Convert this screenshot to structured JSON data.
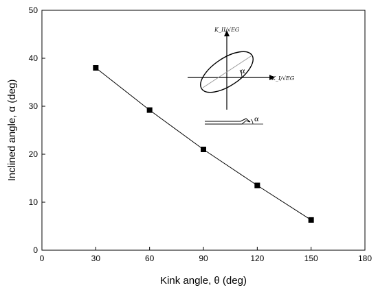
{
  "chart_data": {
    "type": "line",
    "x": [
      30,
      60,
      90,
      120,
      150
    ],
    "y": [
      38.0,
      29.2,
      21.0,
      13.5,
      6.3
    ],
    "xlabel": "Kink angle, θ (deg)",
    "ylabel": "Inclined angle, α (deg)",
    "xlim": [
      0,
      180
    ],
    "ylim": [
      0,
      50
    ],
    "xticks": [
      0,
      30,
      60,
      90,
      120,
      150,
      180
    ],
    "yticks": [
      0,
      10,
      20,
      30,
      40,
      50
    ],
    "xtick_labels": [
      "0",
      "30",
      "60",
      "90",
      "120",
      "150",
      "180"
    ],
    "ytick_labels": [
      "0",
      "10",
      "20",
      "30",
      "40",
      "50"
    ],
    "grid": false,
    "marker": "square",
    "line_color": "#000000",
    "marker_color": "#000000",
    "inset": {
      "y_axis_label": "K_II/√EG",
      "x_axis_label": "K_I/√EG",
      "ellipse_angle_label": "α",
      "kink_angle_label": "α"
    }
  }
}
